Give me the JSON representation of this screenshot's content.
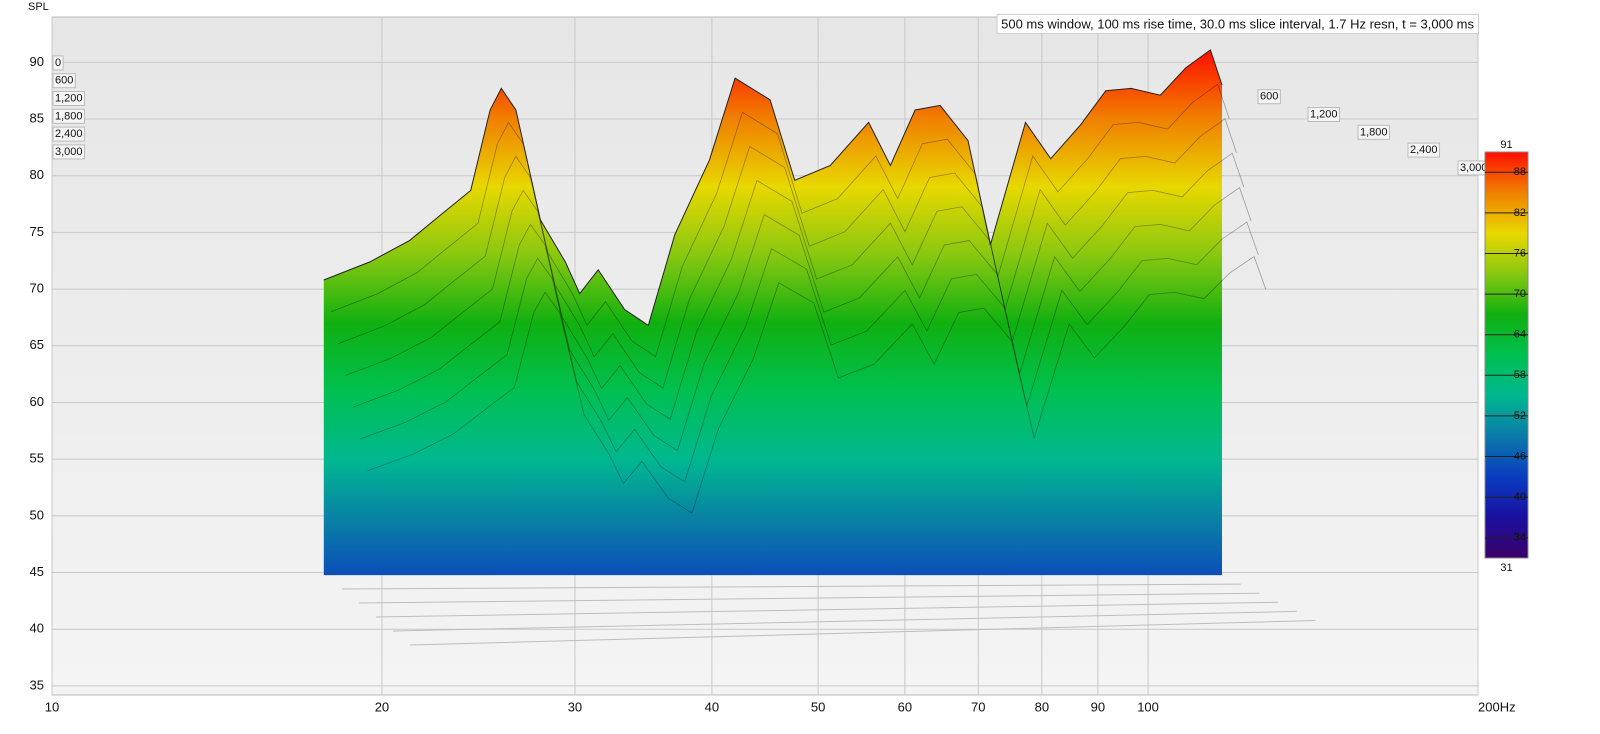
{
  "chart_data": {
    "type": "waterfall",
    "y_label": "SPL",
    "annotation": "500 ms window, 100 ms rise time, 30.0 ms slice interval, 1.7 Hz resn, t = 3,000 ms",
    "x_scale": "log",
    "xlim": [
      10,
      200
    ],
    "xticks": [
      10,
      20,
      30,
      40,
      50,
      60,
      70,
      80,
      90,
      100,
      {
        "value": 200,
        "label": "200Hz"
      }
    ],
    "ylim": [
      34.2,
      94
    ],
    "yticks": [
      35,
      40,
      45,
      50,
      55,
      60,
      65,
      70,
      75,
      80,
      85,
      90
    ],
    "grid": true,
    "zlim": [
      0,
      3000
    ],
    "zticks": [
      {
        "value": 0,
        "label": "0"
      },
      {
        "value": 600,
        "label": "600"
      },
      {
        "value": 1200,
        "label": "1,200"
      },
      {
        "value": 1800,
        "label": "1,800"
      },
      {
        "value": 2400,
        "label": "2,400"
      },
      {
        "value": 3000,
        "label": "3,000"
      }
    ],
    "x": [
      17.7,
      19.5,
      21.2,
      22.6,
      24.1,
      25.1,
      25.7,
      26.5,
      27.9,
      29.4,
      30.3,
      31.5,
      33.3,
      35.0,
      37.0,
      39.8,
      42.0,
      45.2,
      47.6,
      51.3,
      55.6,
      58.2,
      61.3,
      64.6,
      68.5,
      71.8,
      77.3,
      81.5,
      86.8,
      91.5,
      96.5,
      102.6,
      108.2,
      114.0,
      116.8
    ],
    "values": [
      70.8,
      72.4,
      74.3,
      76.5,
      78.7,
      85.8,
      87.7,
      85.8,
      76.1,
      72.4,
      69.6,
      71.7,
      68.2,
      66.8,
      74.8,
      81.4,
      88.6,
      86.7,
      79.6,
      80.9,
      84.7,
      80.9,
      85.8,
      86.2,
      83.1,
      73.9,
      84.7,
      81.5,
      84.5,
      87.5,
      87.7,
      87.1,
      89.5,
      91.1,
      88.0
    ],
    "colorbar": {
      "lim": [
        31,
        91
      ],
      "ticks": [
        34,
        40,
        46,
        52,
        58,
        64,
        70,
        76,
        82,
        88
      ]
    },
    "colormap": [
      "#3c0068",
      "#1a10a0",
      "#0a3cc0",
      "#0a7aa8",
      "#00b890",
      "#00c050",
      "#10b010",
      "#88c810",
      "#e8d800",
      "#f08000",
      "#ff1000"
    ]
  }
}
